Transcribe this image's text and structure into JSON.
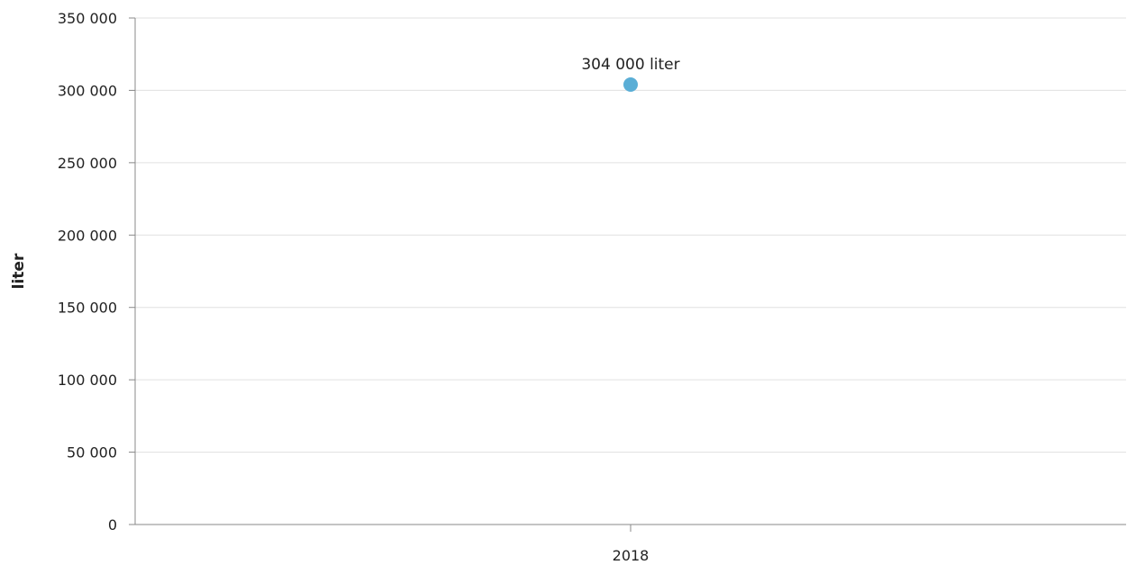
{
  "chart_data": {
    "type": "scatter",
    "categories": [
      "2018"
    ],
    "series": [
      {
        "values": [
          304000
        ],
        "data_labels": [
          "304 000 liter"
        ]
      }
    ],
    "y_ticks": [
      "0",
      "50 000",
      "100 000",
      "150 000",
      "200 000",
      "250 000",
      "300 000",
      "350 000"
    ],
    "ylim": [
      0,
      350000
    ],
    "ylabel": "liter",
    "xlabel": "",
    "title": "",
    "grid": true,
    "colors": {
      "point": "#5aaed6",
      "grid": "#e0e0e0",
      "axis": "#888888"
    }
  }
}
